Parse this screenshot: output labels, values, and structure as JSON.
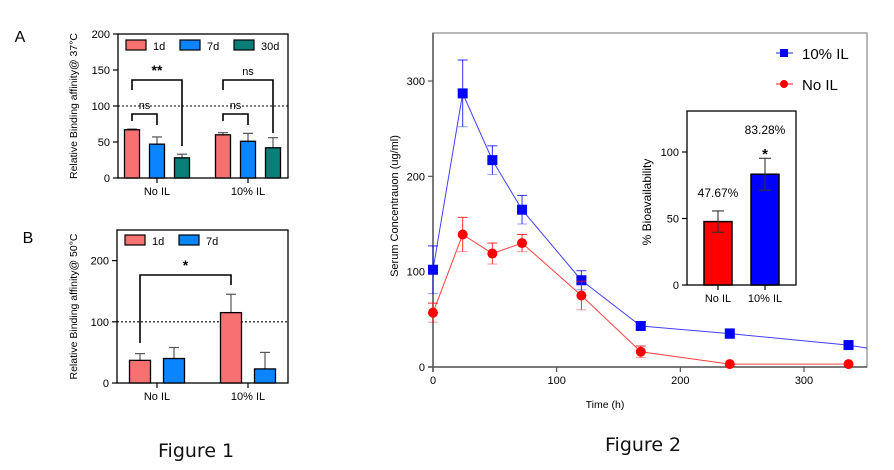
{
  "figure1_caption": "Figure 1",
  "figure2_caption": "Figure 2",
  "chart_data": [
    {
      "id": "panel-a",
      "panel_label": "A",
      "type": "bar",
      "title": "",
      "xlabel": "",
      "ylabel": "Relative Binding affinity@ 37°C",
      "ylim": [
        0,
        200
      ],
      "yticks": [
        0,
        50,
        100,
        150,
        200
      ],
      "reference_line": 100,
      "categories": [
        "No IL",
        "10% IL"
      ],
      "series": [
        {
          "name": "1d",
          "color": "#F87171",
          "values": [
            67,
            60
          ],
          "errors": [
            1,
            3
          ]
        },
        {
          "name": "7d",
          "color": "#0A84FF",
          "values": [
            47,
            51
          ],
          "errors": [
            10,
            11
          ]
        },
        {
          "name": "30d",
          "color": "#0A7E78",
          "values": [
            28,
            42
          ],
          "errors": [
            5,
            14
          ]
        }
      ],
      "legend": "top",
      "annotations": [
        {
          "text": "**",
          "compare": [
            "No IL 1d",
            "No IL 30d"
          ]
        },
        {
          "text": "ns",
          "compare": [
            "No IL 1d",
            "No IL 7d"
          ]
        },
        {
          "text": "ns",
          "compare": [
            "10% IL 1d",
            "10% IL 30d"
          ]
        },
        {
          "text": "ns",
          "compare": [
            "10% IL 1d",
            "10% IL 7d"
          ]
        }
      ]
    },
    {
      "id": "panel-b",
      "panel_label": "B",
      "type": "bar",
      "title": "",
      "xlabel": "",
      "ylabel": "Relative Binding affinity@ 50°C",
      "ylim": [
        0,
        250
      ],
      "yticks": [
        0,
        100,
        200
      ],
      "reference_line": 100,
      "categories": [
        "No IL",
        "10% IL"
      ],
      "series": [
        {
          "name": "1d",
          "color": "#F87171",
          "values": [
            37,
            115
          ],
          "errors": [
            11,
            30
          ]
        },
        {
          "name": "7d",
          "color": "#0A84FF",
          "values": [
            40,
            23
          ],
          "errors": [
            18,
            27
          ]
        }
      ],
      "legend": "top",
      "annotations": [
        {
          "text": "*",
          "compare": [
            "No IL 1d",
            "10% IL 1d"
          ]
        }
      ]
    },
    {
      "id": "figure-2",
      "type": "line",
      "title": "",
      "xlabel": "Time (h)",
      "ylabel": "Serum Concentrauon (ug/ml)",
      "xlim": [
        0,
        350
      ],
      "ylim": [
        0,
        350
      ],
      "xticks": [
        0,
        100,
        200,
        300
      ],
      "yticks": [
        0,
        100,
        200,
        300
      ],
      "x": [
        0,
        24,
        48,
        72,
        120,
        168,
        240,
        336
      ],
      "series": [
        {
          "name": "10% IL",
          "color": "#0000FF",
          "marker": "square",
          "values": [
            102,
            287,
            217,
            165,
            91,
            43,
            35,
            23
          ],
          "errors": [
            25,
            35,
            15,
            15,
            10,
            4,
            5,
            3
          ]
        },
        {
          "name": "No IL",
          "color": "#FF0000",
          "marker": "circle",
          "values": [
            57,
            139,
            119,
            130,
            75,
            16,
            3,
            3
          ],
          "errors": [
            10,
            18,
            11,
            9,
            15,
            6,
            0,
            0
          ]
        }
      ],
      "legend": "top-right"
    },
    {
      "id": "figure-2-inset",
      "type": "bar",
      "title": "",
      "xlabel": "",
      "ylabel": "% Bioavailability",
      "ylim": [
        0,
        130
      ],
      "yticks": [
        0,
        50,
        100
      ],
      "categories": [
        "No IL",
        "10% IL"
      ],
      "values": [
        47.67,
        83.28
      ],
      "errors": [
        8,
        12
      ],
      "colors": [
        "#FF0000",
        "#0000FF"
      ],
      "data_labels": [
        "47.67%",
        "83.28%"
      ],
      "annotations": [
        {
          "text": "*",
          "target": "10% IL"
        }
      ]
    }
  ]
}
